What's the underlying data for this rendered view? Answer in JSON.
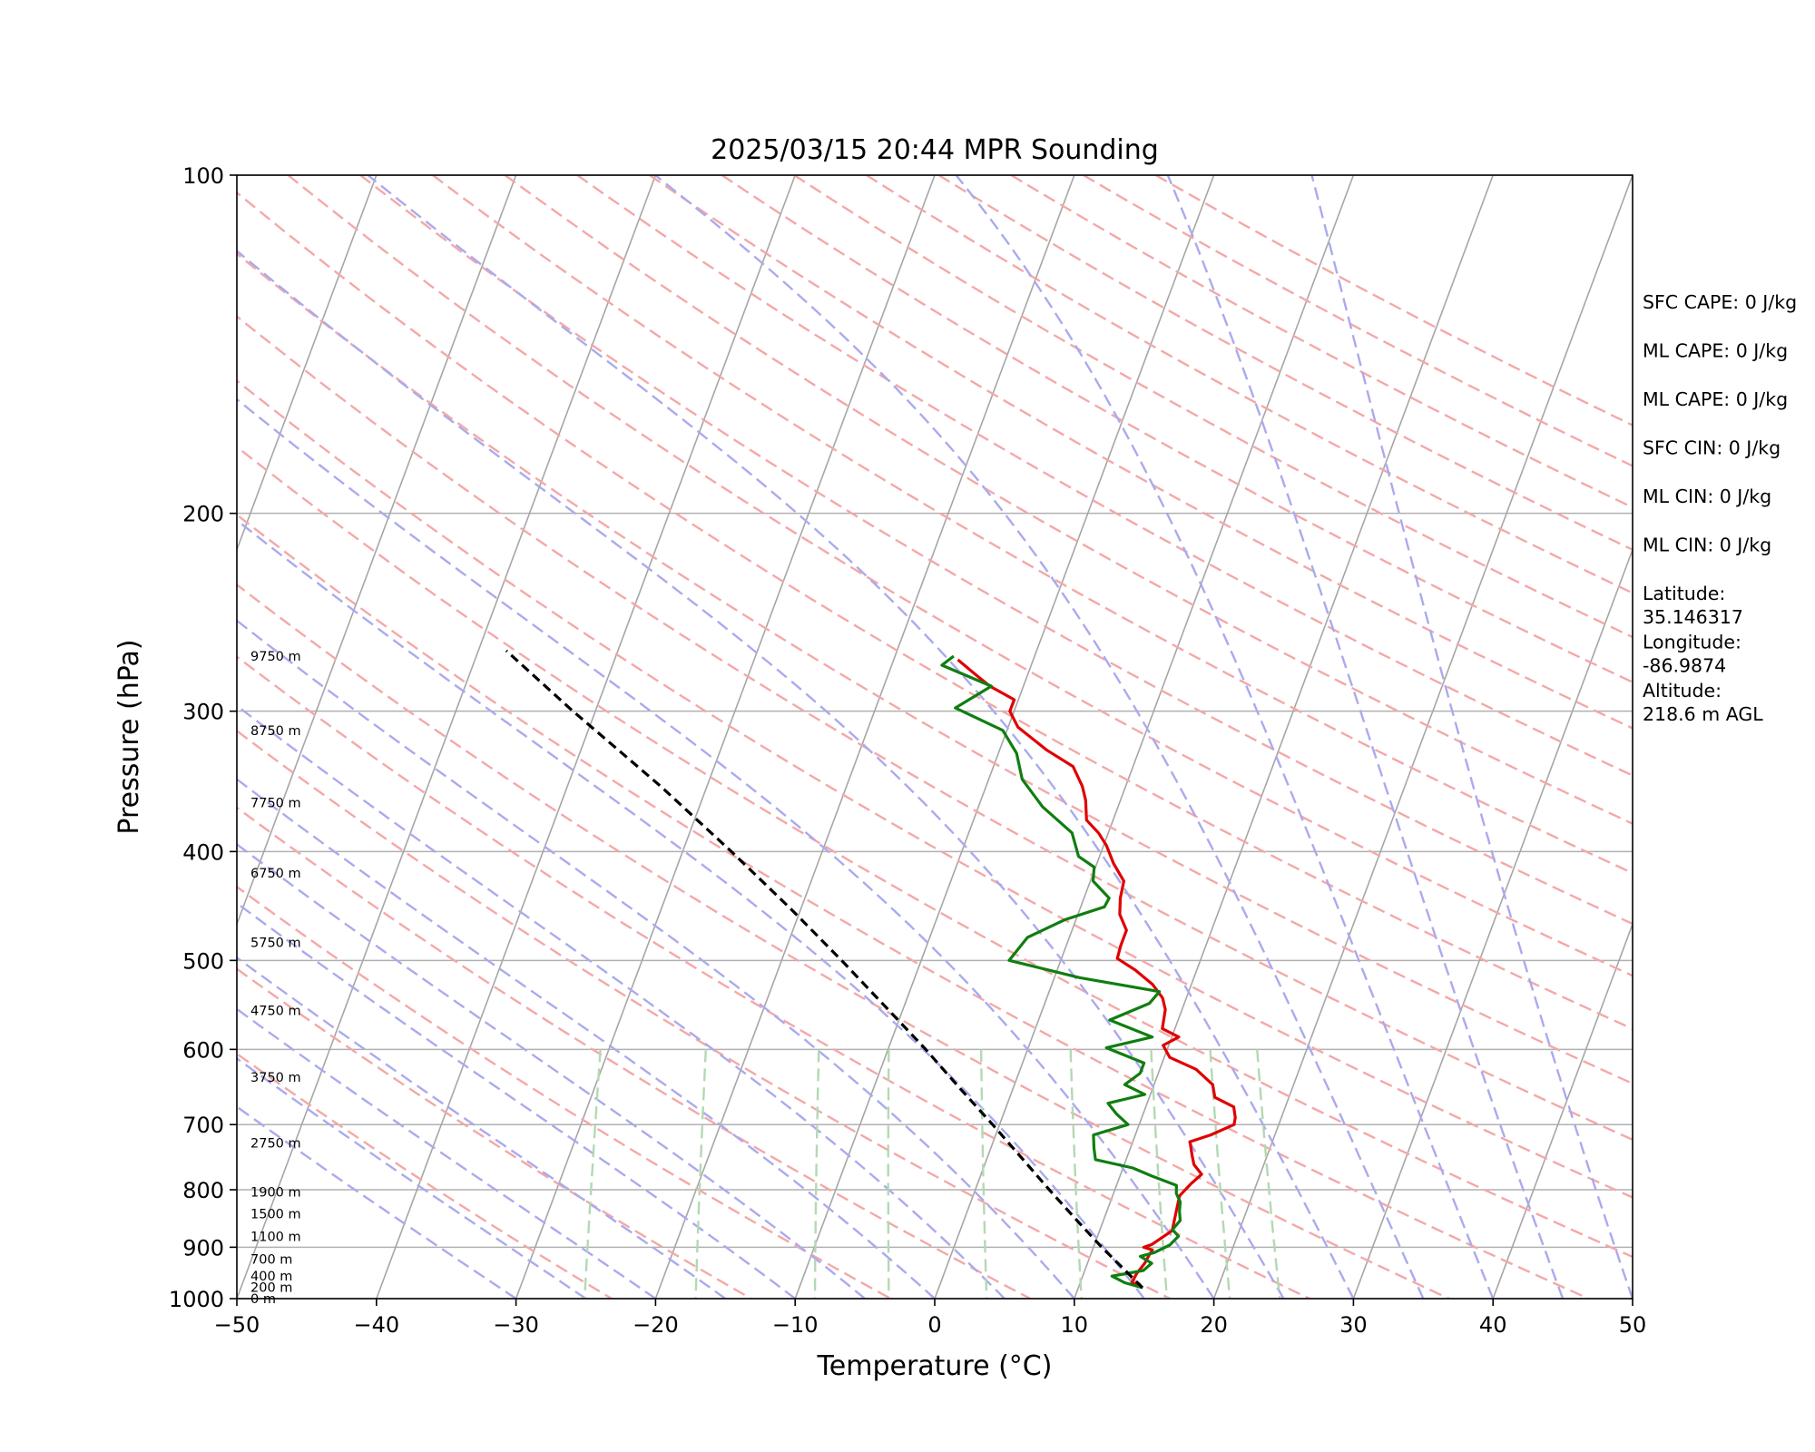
{
  "chart_data": {
    "type": "line",
    "chart_kind": "skew-T log-P sounding",
    "title": "2025/03/15 20:44 MPR Sounding",
    "xlabel": "Temperature (°C)",
    "ylabel": "Pressure (hPa)",
    "xlim": [
      -50,
      50
    ],
    "ylim": [
      1000,
      100
    ],
    "y_scale": "log",
    "x_ticks": [
      -50,
      -40,
      -30,
      -20,
      -10,
      0,
      10,
      20,
      30,
      40,
      50
    ],
    "x_tick_labels": [
      "−50",
      "−40",
      "−30",
      "−20",
      "−10",
      "0",
      "10",
      "20",
      "30",
      "40",
      "50"
    ],
    "y_ticks": [
      100,
      200,
      300,
      400,
      500,
      600,
      700,
      800,
      900,
      1000
    ],
    "y_tick_labels": [
      "100",
      "200",
      "300",
      "400",
      "500",
      "600",
      "700",
      "800",
      "900",
      "1000"
    ],
    "grid": true,
    "background_lines": {
      "isotherms": {
        "color": "#a6a6a6",
        "values": [
          -140,
          -130,
          -120,
          -110,
          -100,
          -90,
          -80,
          -70,
          -60,
          -50,
          -40,
          -30,
          -20,
          -10,
          0,
          10,
          20,
          30,
          40,
          50
        ]
      },
      "dry_adiabats": {
        "color": "#f4a8a8",
        "style": "dashed",
        "theta_k": [
          250,
          260,
          270,
          280,
          290,
          300,
          310,
          320,
          330,
          340,
          350,
          360,
          370,
          380,
          390,
          400,
          410,
          420,
          430,
          440,
          450,
          460,
          470,
          480,
          490,
          500
        ]
      },
      "moist_adiabats": {
        "color": "#aaaaee",
        "style": "dashed",
        "surface_temp_c": [
          -30,
          -25,
          -20,
          -15,
          -10,
          -5,
          0,
          5,
          10,
          15,
          20,
          25,
          30,
          35,
          40,
          45,
          50
        ]
      },
      "mixing_ratio_lines": {
        "color": "#b3d9b3",
        "style": "dashed",
        "top_pressure_hpa": 600,
        "values_gkg": [
          0.5,
          1,
          2,
          3,
          5,
          8,
          12,
          16,
          20
        ]
      }
    },
    "series": [
      {
        "color": "#e00000",
        "points": [
          [
            978,
            14.6
          ],
          [
            968,
            13.7
          ],
          [
            950,
            13.8
          ],
          [
            930,
            14.1
          ],
          [
            915,
            14.2
          ],
          [
            905,
            14.3
          ],
          [
            900,
            13.6
          ],
          [
            895,
            14.1
          ],
          [
            870,
            15.2
          ],
          [
            840,
            15.0
          ],
          [
            810,
            14.8
          ],
          [
            790,
            15.3
          ],
          [
            775,
            15.8
          ],
          [
            760,
            15.0
          ],
          [
            745,
            14.6
          ],
          [
            725,
            14.1
          ],
          [
            715,
            15.4
          ],
          [
            700,
            16.8
          ],
          [
            690,
            16.7
          ],
          [
            675,
            16.3
          ],
          [
            662,
            14.7
          ],
          [
            645,
            14.2
          ],
          [
            625,
            12.6
          ],
          [
            610,
            10.4
          ],
          [
            595,
            9.6
          ],
          [
            585,
            10.5
          ],
          [
            575,
            9.1
          ],
          [
            553,
            8.8
          ],
          [
            540,
            8.3
          ],
          [
            525,
            7.2
          ],
          [
            510,
            5.6
          ],
          [
            498,
            4.0
          ],
          [
            485,
            3.9
          ],
          [
            470,
            3.9
          ],
          [
            455,
            3.0
          ],
          [
            440,
            2.6
          ],
          [
            425,
            2.4
          ],
          [
            410,
            1.2
          ],
          [
            395,
            0.2
          ],
          [
            385,
            -0.7
          ],
          [
            375,
            -1.9
          ],
          [
            360,
            -2.5
          ],
          [
            350,
            -3.1
          ],
          [
            336,
            -4.3
          ],
          [
            325,
            -6.6
          ],
          [
            310,
            -9.3
          ],
          [
            300,
            -10.3
          ],
          [
            293,
            -10.3
          ],
          [
            285,
            -12.4
          ],
          [
            278,
            -13.8
          ],
          [
            270,
            -15.4
          ]
        ]
      },
      {
        "color": "#107d10",
        "points": [
          [
            978,
            14.6
          ],
          [
            968,
            13.2
          ],
          [
            955,
            12.1
          ],
          [
            944,
            14.2
          ],
          [
            930,
            14.6
          ],
          [
            917,
            13.6
          ],
          [
            910,
            14.5
          ],
          [
            896,
            15.4
          ],
          [
            880,
            15.8
          ],
          [
            868,
            15.2
          ],
          [
            852,
            15.5
          ],
          [
            836,
            15.2
          ],
          [
            820,
            15.0
          ],
          [
            806,
            14.5
          ],
          [
            793,
            14.3
          ],
          [
            778,
            12.3
          ],
          [
            765,
            10.7
          ],
          [
            752,
            7.8
          ],
          [
            735,
            7.4
          ],
          [
            715,
            7.0
          ],
          [
            700,
            9.2
          ],
          [
            685,
            8.1
          ],
          [
            670,
            7.2
          ],
          [
            658,
            9.6
          ],
          [
            645,
            7.9
          ],
          [
            630,
            8.7
          ],
          [
            617,
            8.7
          ],
          [
            598,
            5.6
          ],
          [
            585,
            8.6
          ],
          [
            565,
            5.1
          ],
          [
            546,
            7.5
          ],
          [
            533,
            7.9
          ],
          [
            518,
            1.8
          ],
          [
            500,
            -3.7
          ],
          [
            477,
            -3.0
          ],
          [
            460,
            -0.8
          ],
          [
            448,
            1.7
          ],
          [
            440,
            1.8
          ],
          [
            425,
            0.2
          ],
          [
            413,
            -0.1
          ],
          [
            404,
            -1.5
          ],
          [
            385,
            -2.6
          ],
          [
            365,
            -5.4
          ],
          [
            345,
            -7.6
          ],
          [
            327,
            -8.7
          ],
          [
            312,
            -10.3
          ],
          [
            298,
            -14.3
          ],
          [
            285,
            -12.3
          ],
          [
            273,
            -16.4
          ],
          [
            268,
            -15.8
          ]
        ]
      },
      {
        "color": "#000000",
        "style": "dashed",
        "points": [
          [
            978,
            14.6
          ],
          [
            950,
            13.2
          ],
          [
            900,
            10.6
          ],
          [
            850,
            8.0
          ],
          [
            800,
            5.3
          ],
          [
            750,
            2.5
          ],
          [
            700,
            -0.5
          ],
          [
            650,
            -3.8
          ],
          [
            600,
            -7.3
          ],
          [
            550,
            -11.3
          ],
          [
            500,
            -15.7
          ],
          [
            450,
            -20.7
          ],
          [
            400,
            -26.5
          ],
          [
            350,
            -33.3
          ],
          [
            300,
            -41.6
          ],
          [
            265,
            -48.0
          ]
        ]
      }
    ],
    "height_labels": [
      {
        "p": 1000,
        "text": "0 m"
      },
      {
        "p": 977,
        "text": "200 m"
      },
      {
        "p": 955,
        "text": "400 m"
      },
      {
        "p": 922,
        "text": "700 m"
      },
      {
        "p": 880,
        "text": "1100 m"
      },
      {
        "p": 840,
        "text": "1500 m"
      },
      {
        "p": 804,
        "text": "1900 m"
      },
      {
        "p": 727,
        "text": "2750 m"
      },
      {
        "p": 635,
        "text": "3750 m"
      },
      {
        "p": 554,
        "text": "4750 m"
      },
      {
        "p": 482,
        "text": "5750 m"
      },
      {
        "p": 418,
        "text": "6750 m"
      },
      {
        "p": 362,
        "text": "7750 m"
      },
      {
        "p": 312,
        "text": "8750 m"
      },
      {
        "p": 268,
        "text": "9750 m"
      }
    ],
    "annotations": [
      "SFC CAPE: 0 J/kg",
      "ML CAPE: 0 J/kg",
      "ML CAPE: 0 J/kg",
      "SFC CIN: 0 J/kg",
      "ML CIN: 0 J/kg",
      "ML CIN: 0 J/kg",
      "Latitude:\n35.146317",
      "Longitude:\n-86.9874",
      "Altitude:\n218.6 m AGL"
    ]
  }
}
